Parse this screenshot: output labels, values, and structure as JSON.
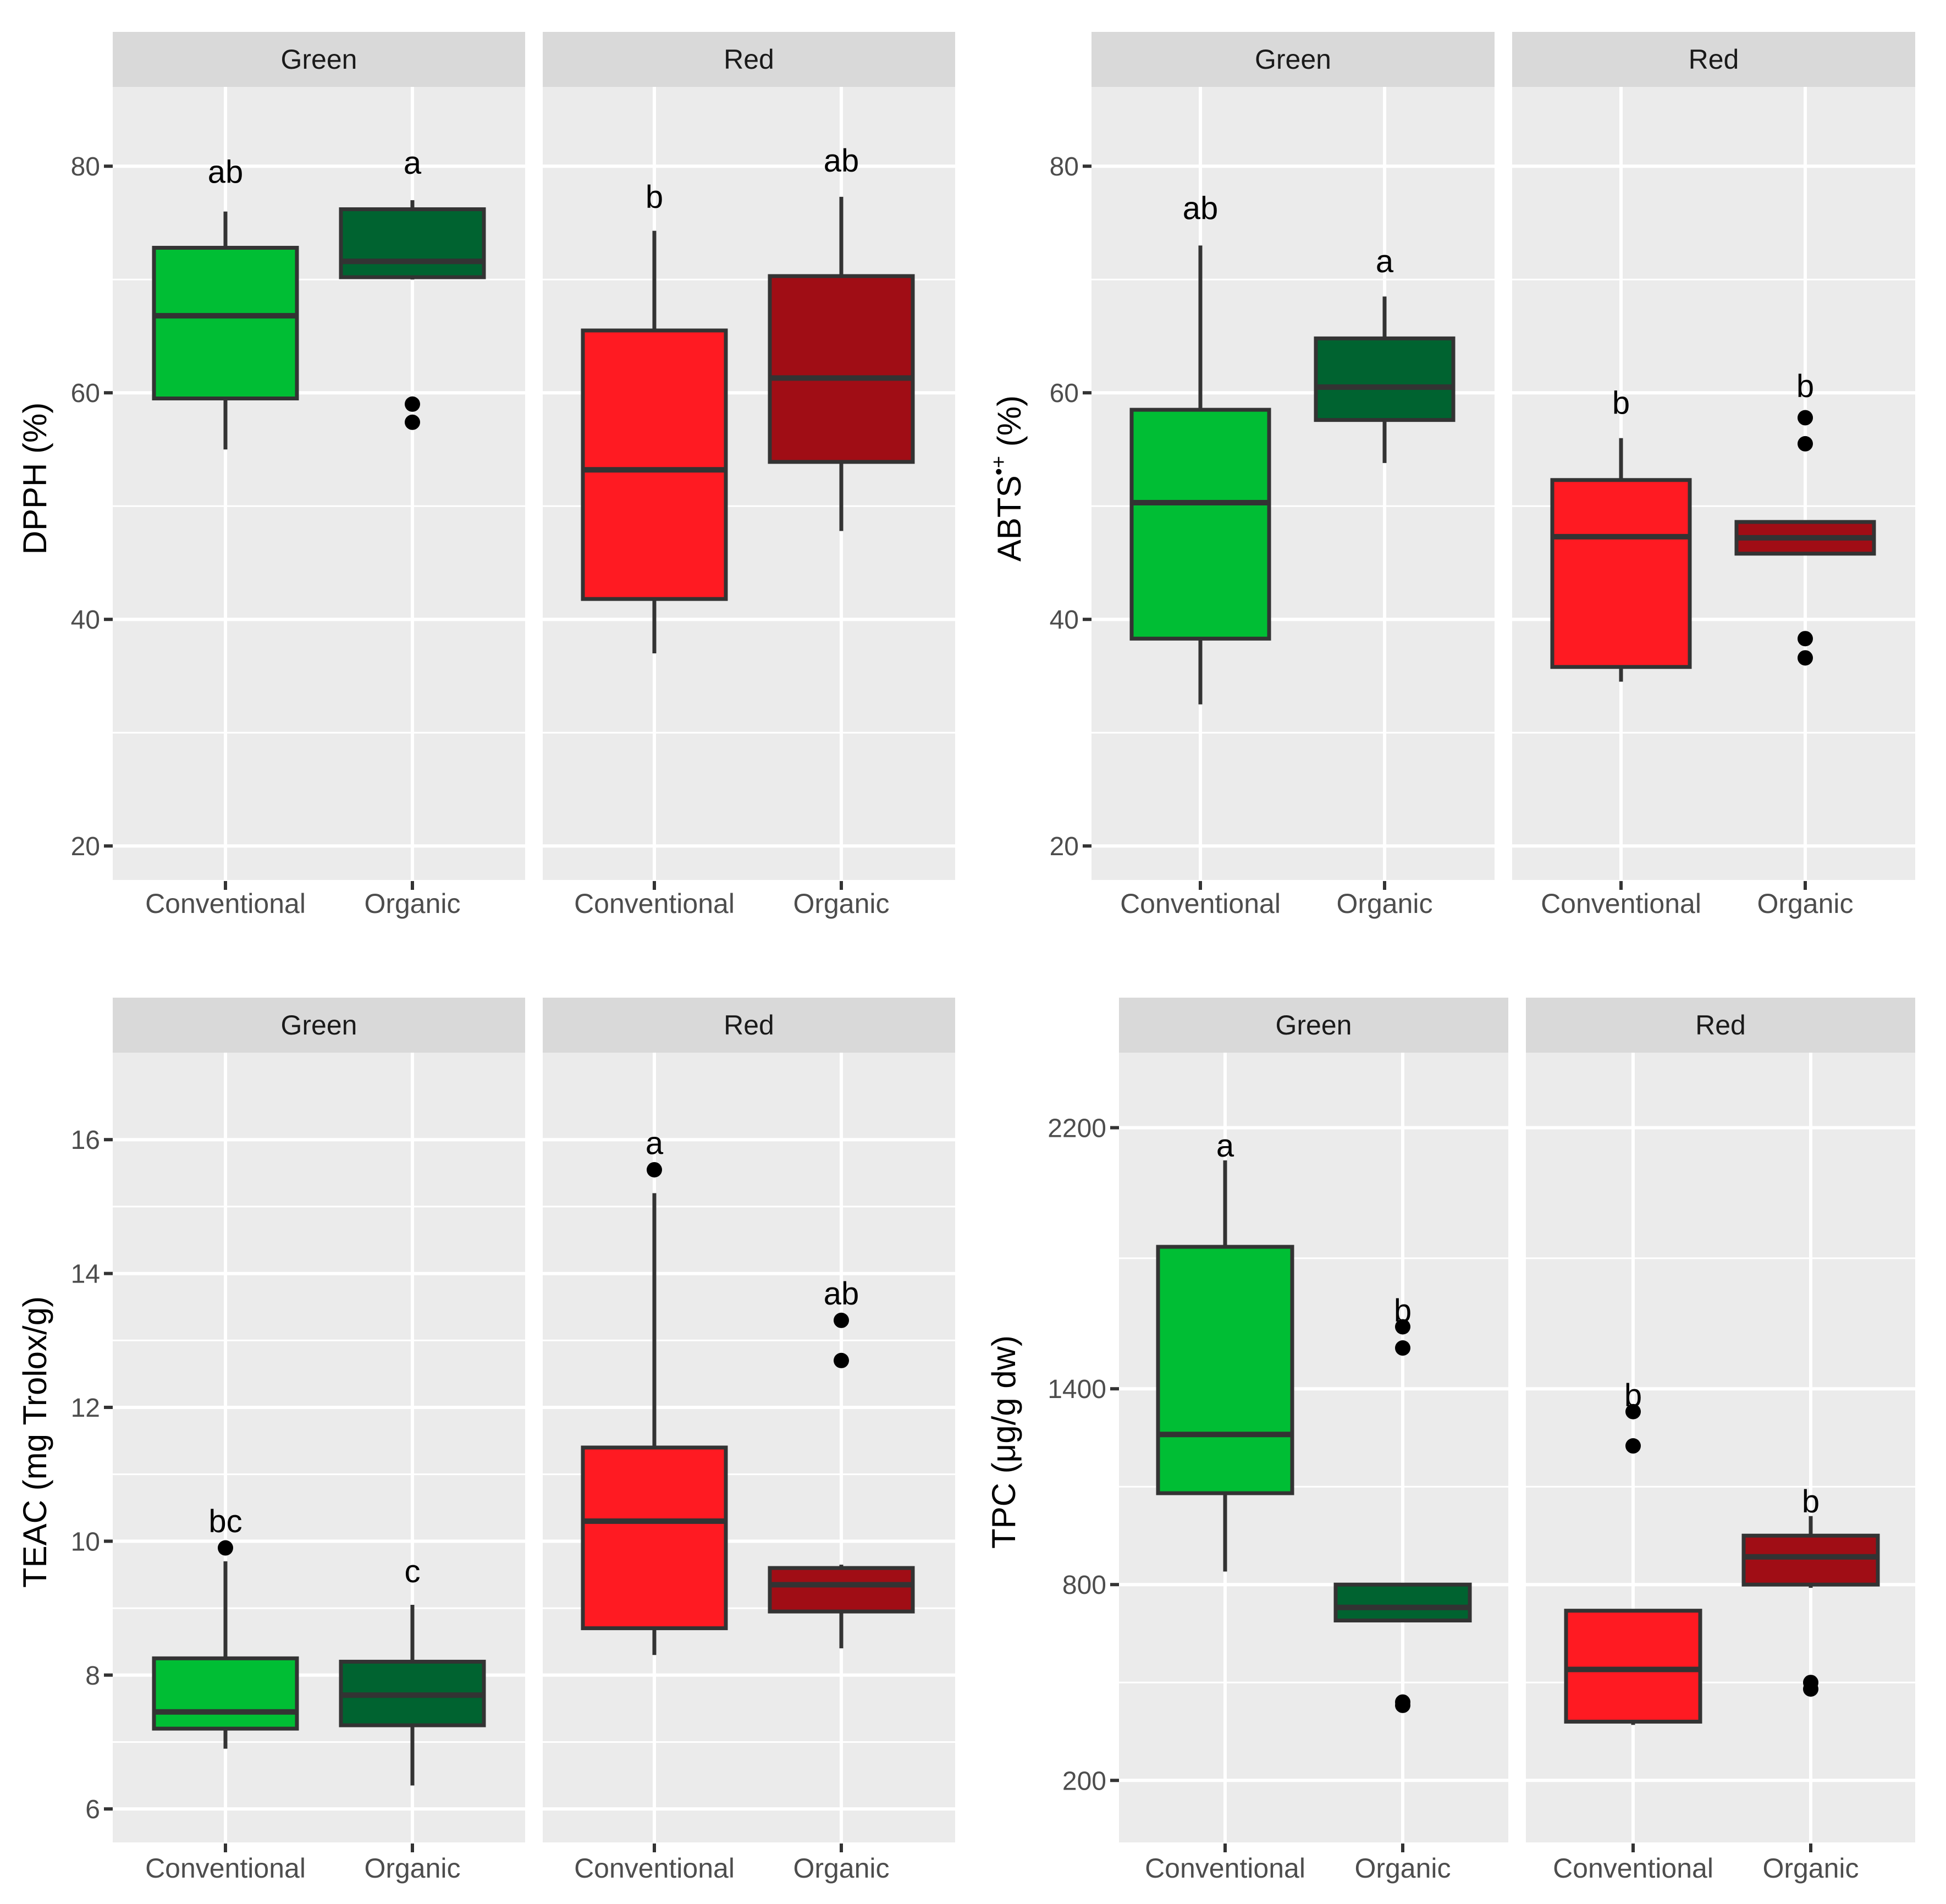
{
  "colors": {
    "panel_bg": "#EBEBEB",
    "strip_bg": "#D9D9D9",
    "grid": "#FFFFFF",
    "outline": "#333333",
    "conv_green": "#00BE34",
    "org_green": "#006330",
    "conv_red": "#FF1A22",
    "org_red": "#A00D15"
  },
  "chart_data": [
    {
      "type": "boxplot",
      "id": "dpph",
      "ylabel": "DPPH (%)",
      "ylim": [
        17,
        87
      ],
      "yticks": [
        20,
        40,
        60,
        80
      ],
      "facets": [
        {
          "strip": "Green",
          "groups": [
            {
              "label": "Conventional",
              "color_key": "conv_green",
              "whisker_low": 55,
              "q1": 59.5,
              "median": 66.8,
              "q3": 72.8,
              "whisker_high": 76,
              "outliers": [],
              "letter": "ab",
              "letter_y": 79.5
            },
            {
              "label": "Organic",
              "color_key": "org_green",
              "whisker_low": 70,
              "q1": 70.2,
              "median": 71.6,
              "q3": 76.2,
              "whisker_high": 77,
              "outliers": [
                59,
                57.4
              ],
              "letter": "a",
              "letter_y": 80.3
            }
          ]
        },
        {
          "strip": "Red",
          "groups": [
            {
              "label": "Conventional",
              "color_key": "conv_red",
              "whisker_low": 37,
              "q1": 41.8,
              "median": 53.2,
              "q3": 65.5,
              "whisker_high": 74.3,
              "outliers": [],
              "letter": "b",
              "letter_y": 77.3
            },
            {
              "label": "Organic",
              "color_key": "org_red",
              "whisker_low": 47.8,
              "q1": 53.9,
              "median": 61.3,
              "q3": 70.3,
              "whisker_high": 77.3,
              "outliers": [],
              "letter": "ab",
              "letter_y": 80.5
            }
          ]
        }
      ]
    },
    {
      "type": "boxplot",
      "id": "abts",
      "ylabel": "ABTS",
      "ylabel_sup": "•+",
      "ylabel_tail": " (%)",
      "ylim": [
        17,
        87
      ],
      "yticks": [
        20,
        40,
        60,
        80
      ],
      "facets": [
        {
          "strip": "Green",
          "groups": [
            {
              "label": "Conventional",
              "color_key": "conv_green",
              "whisker_low": 32.5,
              "q1": 38.3,
              "median": 50.3,
              "q3": 58.5,
              "whisker_high": 73,
              "outliers": [],
              "letter": "ab",
              "letter_y": 76.3
            },
            {
              "label": "Organic",
              "color_key": "org_green",
              "whisker_low": 53.8,
              "q1": 57.6,
              "median": 60.5,
              "q3": 64.8,
              "whisker_high": 68.5,
              "outliers": [],
              "letter": "a",
              "letter_y": 71.6
            }
          ]
        },
        {
          "strip": "Red",
          "groups": [
            {
              "label": "Conventional",
              "color_key": "conv_red",
              "whisker_low": 34.5,
              "q1": 35.8,
              "median": 47.3,
              "q3": 52.3,
              "whisker_high": 56,
              "outliers": [],
              "letter": "b",
              "letter_y": 59.1
            },
            {
              "label": "Organic",
              "color_key": "org_red",
              "whisker_low": 45.8,
              "q1": 45.8,
              "median": 47.2,
              "q3": 48.6,
              "whisker_high": 48.6,
              "outliers": [
                57.8,
                55.5,
                38.3,
                36.6
              ],
              "letter": "b",
              "letter_y": 60.6
            }
          ]
        }
      ]
    },
    {
      "type": "boxplot",
      "id": "teac",
      "ylabel": "TEAC (mg Trolox/g)",
      "ylim": [
        5.5,
        17.3
      ],
      "yticks": [
        6,
        8,
        10,
        12,
        14,
        16
      ],
      "facets": [
        {
          "strip": "Green",
          "groups": [
            {
              "label": "Conventional",
              "color_key": "conv_green",
              "whisker_low": 6.9,
              "q1": 7.2,
              "median": 7.45,
              "q3": 8.25,
              "whisker_high": 9.7,
              "outliers": [
                9.9
              ],
              "letter": "bc",
              "letter_y": 10.3
            },
            {
              "label": "Organic",
              "color_key": "org_green",
              "whisker_low": 6.35,
              "q1": 7.25,
              "median": 7.7,
              "q3": 8.2,
              "whisker_high": 9.05,
              "outliers": [],
              "letter": "c",
              "letter_y": 9.55
            }
          ]
        },
        {
          "strip": "Red",
          "groups": [
            {
              "label": "Conventional",
              "color_key": "conv_red",
              "whisker_low": 8.3,
              "q1": 8.7,
              "median": 10.3,
              "q3": 11.4,
              "whisker_high": 15.2,
              "outliers": [
                15.55
              ],
              "letter": "a",
              "letter_y": 15.95
            },
            {
              "label": "Organic",
              "color_key": "org_red",
              "whisker_low": 8.4,
              "q1": 8.95,
              "median": 9.35,
              "q3": 9.6,
              "whisker_high": 9.65,
              "outliers": [
                13.3,
                12.7
              ],
              "letter": "ab",
              "letter_y": 13.7
            }
          ]
        }
      ]
    },
    {
      "type": "boxplot",
      "id": "tpc",
      "ylabel": "TPC (μg/g dw)",
      "ylim": [
        10,
        2430
      ],
      "yticks": [
        200,
        800,
        1400,
        2200
      ],
      "facets": [
        {
          "strip": "Green",
          "groups": [
            {
              "label": "Conventional",
              "color_key": "conv_green",
              "whisker_low": 840,
              "q1": 1080,
              "median": 1260,
              "q3": 1835,
              "whisker_high": 2100,
              "outliers": [],
              "letter": "a",
              "letter_y": 2145
            },
            {
              "label": "Organic",
              "color_key": "org_green",
              "whisker_low": 690,
              "q1": 690,
              "median": 730,
              "q3": 800,
              "whisker_high": 800,
              "outliers": [
                1590,
                1525,
                440,
                430
              ],
              "letter": "b",
              "letter_y": 1640
            },
            {
              "label": "",
              "color_key": "",
              "skip": true
            }
          ]
        },
        {
          "strip": "Red",
          "groups": [
            {
              "label": "Conventional",
              "color_key": "conv_red",
              "whisker_low": 370,
              "q1": 380,
              "median": 540,
              "q3": 720,
              "whisker_high": 720,
              "outliers": [
                1330,
                1225
              ],
              "letter": "b",
              "letter_y": 1380
            },
            {
              "label": "Organic",
              "color_key": "org_red",
              "whisker_low": 790,
              "q1": 800,
              "median": 885,
              "q3": 950,
              "whisker_high": 1010,
              "outliers": [
                500,
                480
              ],
              "letter": "b",
              "letter_y": 1055
            }
          ]
        }
      ]
    }
  ]
}
